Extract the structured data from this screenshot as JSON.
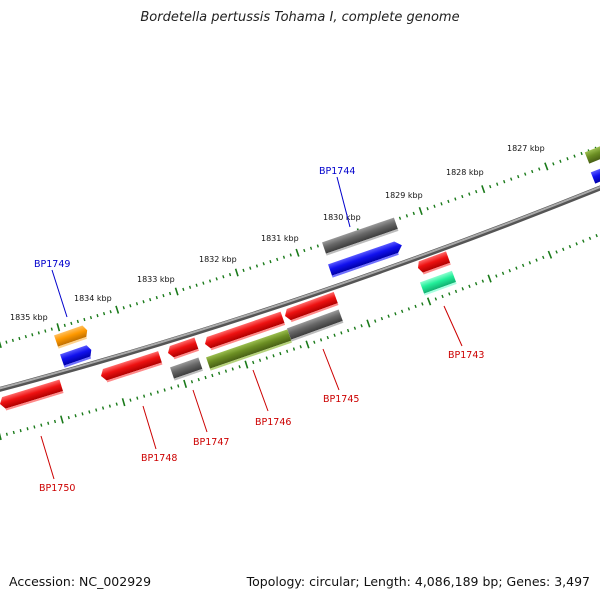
{
  "title": "Bordetella pertussis Tohama I, complete genome",
  "footer": {
    "accession": "Accession: NC_002929",
    "summary": "Topology: circular; Length: 4,086,189 bp; Genes: 3,497"
  },
  "ruler_labels": [
    {
      "id": "1835",
      "text": "1835 kbp"
    },
    {
      "id": "1834",
      "text": "1834 kbp"
    },
    {
      "id": "1833",
      "text": "1833 kbp"
    },
    {
      "id": "1832",
      "text": "1832 kbp"
    },
    {
      "id": "1831",
      "text": "1831 kbp"
    },
    {
      "id": "1830",
      "text": "1830 kbp"
    },
    {
      "id": "1829",
      "text": "1829 kbp"
    },
    {
      "id": "1828",
      "text": "1828 kbp"
    },
    {
      "id": "1827",
      "text": "1827 kbp"
    }
  ],
  "gene_labels": [
    {
      "id": "BP1744",
      "text": "BP1744",
      "strand": "forward"
    },
    {
      "id": "BP1749",
      "text": "BP1749",
      "strand": "forward"
    },
    {
      "id": "BP1743",
      "text": "BP1743",
      "strand": "reverse"
    },
    {
      "id": "BP1745",
      "text": "BP1745",
      "strand": "reverse"
    },
    {
      "id": "BP1746",
      "text": "BP1746",
      "strand": "reverse"
    },
    {
      "id": "BP1747",
      "text": "BP1747",
      "strand": "reverse"
    },
    {
      "id": "BP1748",
      "text": "BP1748",
      "strand": "reverse"
    },
    {
      "id": "BP1750",
      "text": "BP1750",
      "strand": "reverse"
    }
  ],
  "colors": {
    "forward_label": "#0000cc",
    "reverse_label": "#cc0000",
    "tick": "#1a7a1a",
    "backbone": "#808080",
    "red": "#ee1111",
    "grey": "#666666",
    "blue": "#1111ee",
    "orange": "#ff9900",
    "olive": "#6b8e23",
    "teal": "#22ee99"
  }
}
